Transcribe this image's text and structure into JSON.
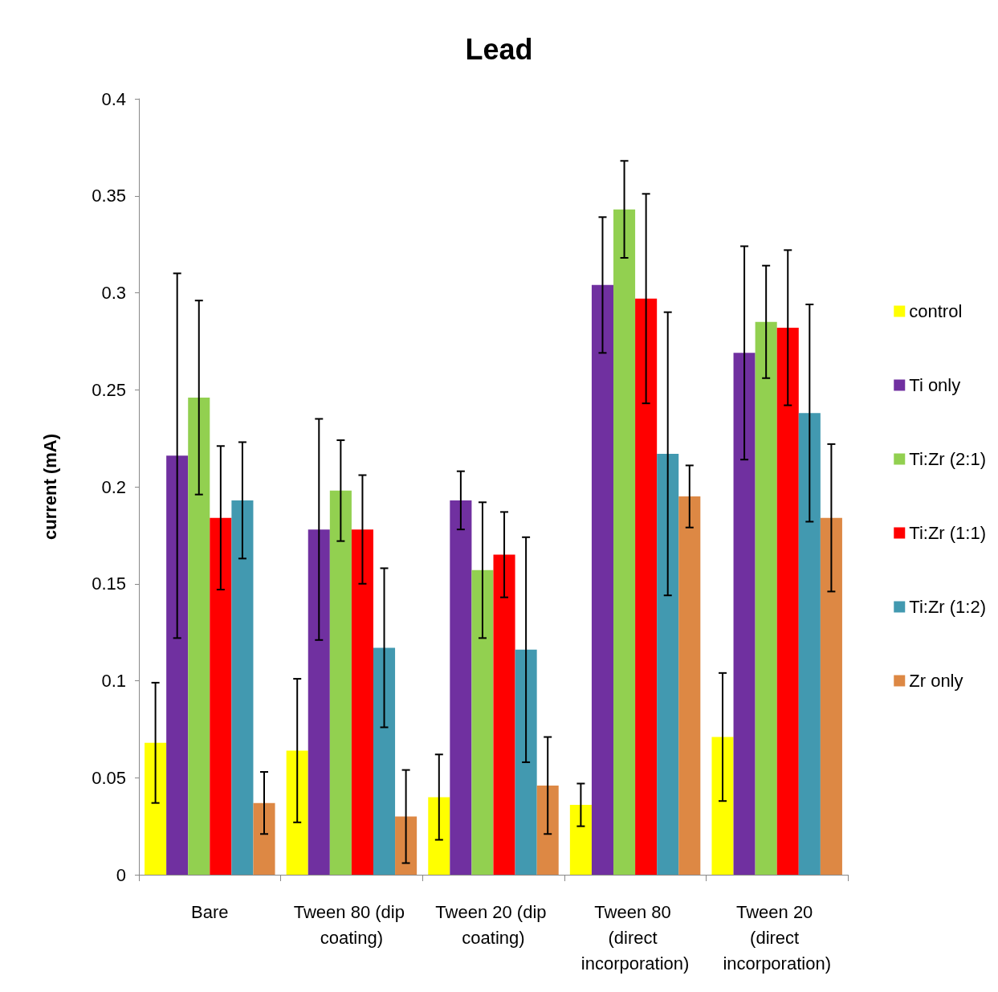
{
  "chart_data": {
    "type": "bar",
    "title": "Lead",
    "ylabel": "current (mA)",
    "categories": [
      "Bare",
      "Tween 80 (dip coating)",
      "Tween 20 (dip coating)",
      "Tween 80 (direct incorporation)",
      "Tween 20 (direct incorporation)"
    ],
    "series": [
      {
        "name": "control",
        "color": "#ffff00",
        "values": [
          0.068,
          0.064,
          0.04,
          0.036,
          0.071
        ],
        "errors": [
          0.031,
          0.037,
          0.022,
          0.011,
          0.033
        ]
      },
      {
        "name": "Ti only",
        "color": "#7030a0",
        "values": [
          0.216,
          0.178,
          0.193,
          0.304,
          0.269
        ],
        "errors": [
          0.094,
          0.057,
          0.015,
          0.035,
          0.055
        ]
      },
      {
        "name": "Ti:Zr (2:1)",
        "color": "#92d050",
        "values": [
          0.246,
          0.198,
          0.157,
          0.343,
          0.285
        ],
        "errors": [
          0.05,
          0.026,
          0.035,
          0.025,
          0.029
        ]
      },
      {
        "name": "Ti:Zr (1:1)",
        "color": "#ff0000",
        "values": [
          0.184,
          0.178,
          0.165,
          0.297,
          0.282
        ],
        "errors": [
          0.037,
          0.028,
          0.022,
          0.054,
          0.04
        ]
      },
      {
        "name": "Ti:Zr (1:2)",
        "color": "#4299b0",
        "values": [
          0.193,
          0.117,
          0.116,
          0.217,
          0.238
        ],
        "errors": [
          0.03,
          0.041,
          0.058,
          0.073,
          0.056
        ]
      },
      {
        "name": "Zr only",
        "color": "#dd8844",
        "values": [
          0.037,
          0.03,
          0.046,
          0.195,
          0.184
        ],
        "errors": [
          0.016,
          0.024,
          0.025,
          0.016,
          0.038
        ]
      }
    ],
    "ylim": [
      0,
      0.4
    ],
    "yticks": [
      0,
      0.05,
      0.1,
      0.15,
      0.2,
      0.25,
      0.3,
      0.35,
      0.4
    ],
    "grid": false,
    "legend": "right"
  }
}
